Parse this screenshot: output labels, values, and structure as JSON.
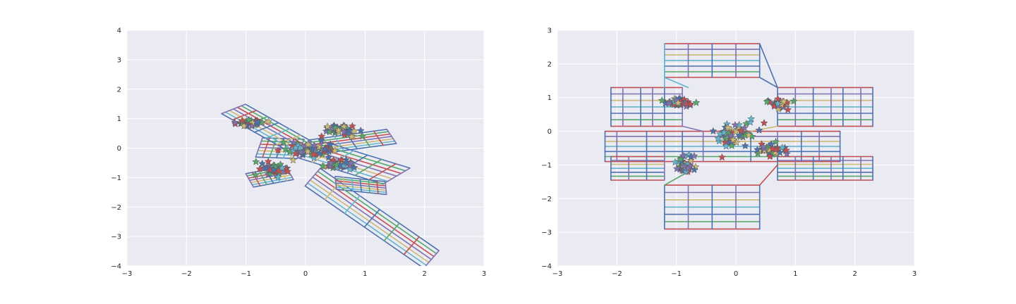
{
  "theme": {
    "axes_bg": "#eaeaf2",
    "grid": "#ffffff",
    "palette": [
      "#4c72b0",
      "#55a868",
      "#c44e52",
      "#8172b2",
      "#ccb974",
      "#64b5cd"
    ],
    "marker_edge": "#555555"
  },
  "chart_data": [
    {
      "type": "line",
      "subtype": "distorted grid of line segments (polar-coordinate transform) with star-marker scatter overlay",
      "title": "",
      "xlabel": "",
      "ylabel": "",
      "xlim": [
        -3,
        3
      ],
      "ylim": [
        -4,
        4
      ],
      "xticks": [
        -3,
        -2,
        -1,
        0,
        1,
        2,
        3
      ],
      "yticks": [
        -4,
        -3,
        -2,
        -1,
        0,
        1,
        2,
        3,
        4
      ],
      "xtick_labels": [
        "−3",
        "−2",
        "−1",
        "0",
        "1",
        "2",
        "3"
      ],
      "ytick_labels": [
        "−4",
        "−3",
        "−2",
        "−1",
        "0",
        "1",
        "2",
        "3",
        "4"
      ],
      "grid": true,
      "arms": [
        {
          "anchor": [
            0,
            0
          ],
          "u": [
            -0.61,
            0.1
          ],
          "v": [
            -0.08,
            -0.45
          ],
          "s0": 0.12,
          "s1": 1.25,
          "t0": -0.65,
          "t1": 0.8,
          "skew": 0.4
        },
        {
          "anchor": [
            0,
            0
          ],
          "u": [
            -0.5,
            0.6
          ],
          "v": [
            -0.2,
            -0.16
          ],
          "s0": 0.15,
          "s1": 2.3,
          "t0": -0.9,
          "t1": 1.1,
          "skew": 0.3
        },
        {
          "anchor": [
            0,
            0
          ],
          "u": [
            0.62,
            0.2
          ],
          "v": [
            0.1,
            -0.3
          ],
          "s0": 0.2,
          "s1": 2.3,
          "t0": -0.8,
          "t1": 0.8,
          "skew": 0.3
        },
        {
          "anchor": [
            0,
            0
          ],
          "u": [
            0.55,
            -0.3
          ],
          "v": [
            -0.25,
            -0.3
          ],
          "s0": 0.2,
          "s1": 2.9,
          "t0": -0.9,
          "t1": 0.9,
          "skew": 0.3
        },
        {
          "anchor": [
            0,
            -0.9
          ],
          "u": [
            0.5,
            -0.65
          ],
          "v": [
            -0.15,
            -0.35
          ],
          "s0": 0.2,
          "s1": 4.3,
          "t0": -1.0,
          "t1": 0.7,
          "skew": 0.3
        },
        {
          "anchor": [
            0.5,
            -1.0
          ],
          "u": [
            0.6,
            -0.1
          ],
          "v": [
            0.02,
            -0.4
          ],
          "s0": 0.0,
          "s1": 1.4,
          "t0": -0.1,
          "t1": 1.0,
          "skew": 0.2
        },
        {
          "anchor": [
            -0.2,
            -0.6
          ],
          "u": [
            -0.62,
            -0.2
          ],
          "v": [
            0.1,
            -0.35
          ],
          "s0": 0.2,
          "s1": 1.3,
          "t0": -0.1,
          "t1": 1.2,
          "skew": 0.3
        }
      ],
      "clusters": [
        {
          "center": [
            -0.95,
            0.85
          ],
          "spread": [
            0.25,
            0.12
          ],
          "n": 40
        },
        {
          "center": [
            -0.55,
            -0.75
          ],
          "spread": [
            0.25,
            0.22
          ],
          "n": 40
        },
        {
          "center": [
            0.6,
            0.6
          ],
          "spread": [
            0.25,
            0.18
          ],
          "n": 40
        },
        {
          "center": [
            0.55,
            -0.55
          ],
          "spread": [
            0.25,
            0.15
          ],
          "n": 40
        },
        {
          "center": [
            0.05,
            -0.05
          ],
          "spread": [
            0.4,
            0.25
          ],
          "n": 55
        }
      ]
    },
    {
      "type": "line",
      "subtype": "distorted grid of line segments (polar-coordinate transform) with star-marker scatter overlay",
      "title": "",
      "xlabel": "",
      "ylabel": "",
      "xlim": [
        -3,
        3
      ],
      "ylim": [
        -4,
        3
      ],
      "xticks": [
        -3,
        -2,
        -1,
        0,
        1,
        2,
        3
      ],
      "yticks": [
        -4,
        -3,
        -2,
        -1,
        0,
        1,
        2,
        3
      ],
      "xtick_labels": [
        "−3",
        "−2",
        "−1",
        "0",
        "1",
        "2",
        "3"
      ],
      "ytick_labels": [
        "−4",
        "−3",
        "−2",
        "−1",
        "0",
        "1",
        "2",
        "3"
      ],
      "grid": true,
      "rects": [
        {
          "x0": -1.2,
          "x1": 0.4,
          "y0": 1.6,
          "y1": 2.6,
          "vcols": [
            -1.2,
            -0.8,
            -0.4,
            0.0,
            0.4
          ]
        },
        {
          "x0": -1.2,
          "x1": 0.4,
          "y0": -2.9,
          "y1": -1.6,
          "vcols": [
            -1.2,
            -0.8,
            -0.4,
            0.0,
            0.4
          ]
        },
        {
          "x0": -2.1,
          "x1": -0.9,
          "y0": 0.15,
          "y1": 1.3,
          "vcols": [
            -2.1,
            -1.9,
            -1.6,
            -1.4,
            -1.2,
            -0.9
          ]
        },
        {
          "x0": 0.7,
          "x1": 2.3,
          "y0": 0.15,
          "y1": 1.3,
          "vcols": [
            0.7,
            1.0,
            1.3,
            1.6,
            1.8,
            2.1,
            2.3
          ]
        },
        {
          "x0": -2.2,
          "x1": 1.75,
          "y0": -0.9,
          "y1": 0.0,
          "vcols": [
            -2.2,
            -2.0,
            -1.5,
            -1.2,
            -0.9,
            -0.55,
            0.25,
            0.7,
            1.1,
            1.4,
            1.75
          ]
        },
        {
          "x0": -2.1,
          "x1": -1.2,
          "y0": -1.45,
          "y1": -0.75,
          "vcols": [
            -2.1,
            -1.8,
            -1.5,
            -1.2
          ]
        },
        {
          "x0": 0.7,
          "x1": 2.3,
          "y0": -1.45,
          "y1": -0.75,
          "vcols": [
            0.7,
            1.0,
            1.3,
            1.6,
            1.8,
            2.1,
            2.3
          ]
        }
      ],
      "connectors": [
        [
          [
            -1.2,
            1.6
          ],
          [
            -0.8,
            1.3
          ]
        ],
        [
          [
            0.4,
            1.6
          ],
          [
            0.7,
            1.3
          ]
        ],
        [
          [
            -1.2,
            -1.6
          ],
          [
            -0.8,
            -1.2
          ]
        ],
        [
          [
            0.4,
            -1.6
          ],
          [
            0.7,
            -1.0
          ]
        ],
        [
          [
            -0.9,
            0.15
          ],
          [
            -0.55,
            0.0
          ]
        ],
        [
          [
            0.7,
            0.15
          ],
          [
            0.25,
            0.0
          ]
        ],
        [
          [
            -1.2,
            2.6
          ],
          [
            -1.2,
            1.3
          ]
        ],
        [
          [
            0.4,
            2.6
          ],
          [
            0.7,
            1.3
          ]
        ]
      ],
      "clusters": [
        {
          "center": [
            -0.95,
            0.85
          ],
          "spread": [
            0.25,
            0.12
          ],
          "n": 40
        },
        {
          "center": [
            -0.85,
            -1.0
          ],
          "spread": [
            0.15,
            0.25
          ],
          "n": 40
        },
        {
          "center": [
            0.75,
            0.8
          ],
          "spread": [
            0.2,
            0.12
          ],
          "n": 40
        },
        {
          "center": [
            0.6,
            -0.55
          ],
          "spread": [
            0.25,
            0.15
          ],
          "n": 40
        },
        {
          "center": [
            0.0,
            -0.1
          ],
          "spread": [
            0.45,
            0.35
          ],
          "n": 55
        }
      ]
    }
  ]
}
